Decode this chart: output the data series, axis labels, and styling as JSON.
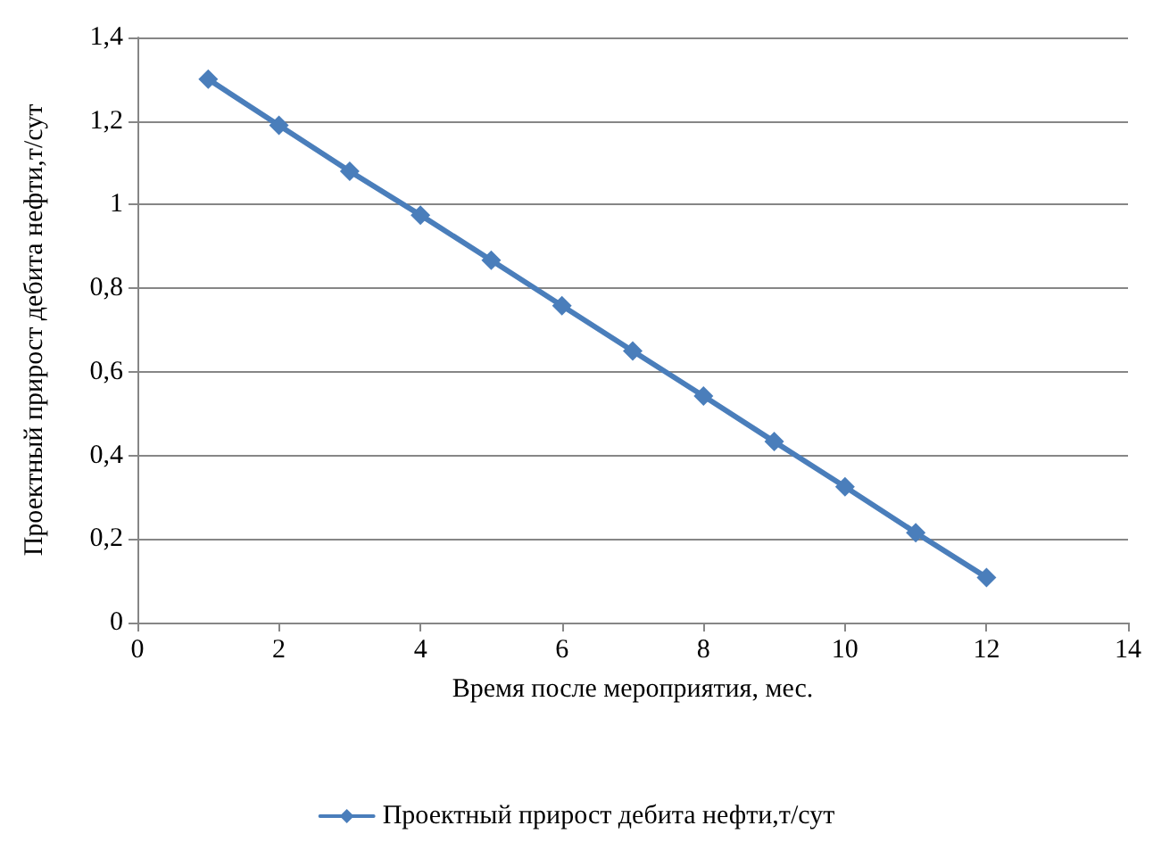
{
  "chart_data": {
    "type": "line",
    "xlabel": "Время после мероприятия, мес.",
    "ylabel": "Проектный прирост дебита нефти,т/сут",
    "x": [
      1,
      2,
      3,
      4,
      5,
      6,
      7,
      8,
      9,
      10,
      11,
      12
    ],
    "series": [
      {
        "name": "Проектный прирост дебита нефти,т/сут",
        "color": "#4a7ebb",
        "values": [
          1.3,
          1.19,
          1.08,
          0.975,
          0.867,
          0.758,
          0.65,
          0.542,
          0.433,
          0.325,
          0.215,
          0.108
        ]
      }
    ],
    "xlim": [
      0,
      14
    ],
    "xticks": [
      0,
      2,
      4,
      6,
      8,
      10,
      12,
      14
    ],
    "ylim": [
      0,
      1.4
    ],
    "yticks": [
      {
        "value": 0,
        "label": "0"
      },
      {
        "value": 0.2,
        "label": "0,2"
      },
      {
        "value": 0.4,
        "label": "0,4"
      },
      {
        "value": 0.6,
        "label": "0,6"
      },
      {
        "value": 0.8,
        "label": "0,8"
      },
      {
        "value": 1,
        "label": "1"
      },
      {
        "value": 1.2,
        "label": "1,2"
      },
      {
        "value": 1.4,
        "label": "1,4"
      }
    ],
    "grid": "y",
    "legend": "bottom",
    "marker": "diamond",
    "line_style": "solid"
  }
}
